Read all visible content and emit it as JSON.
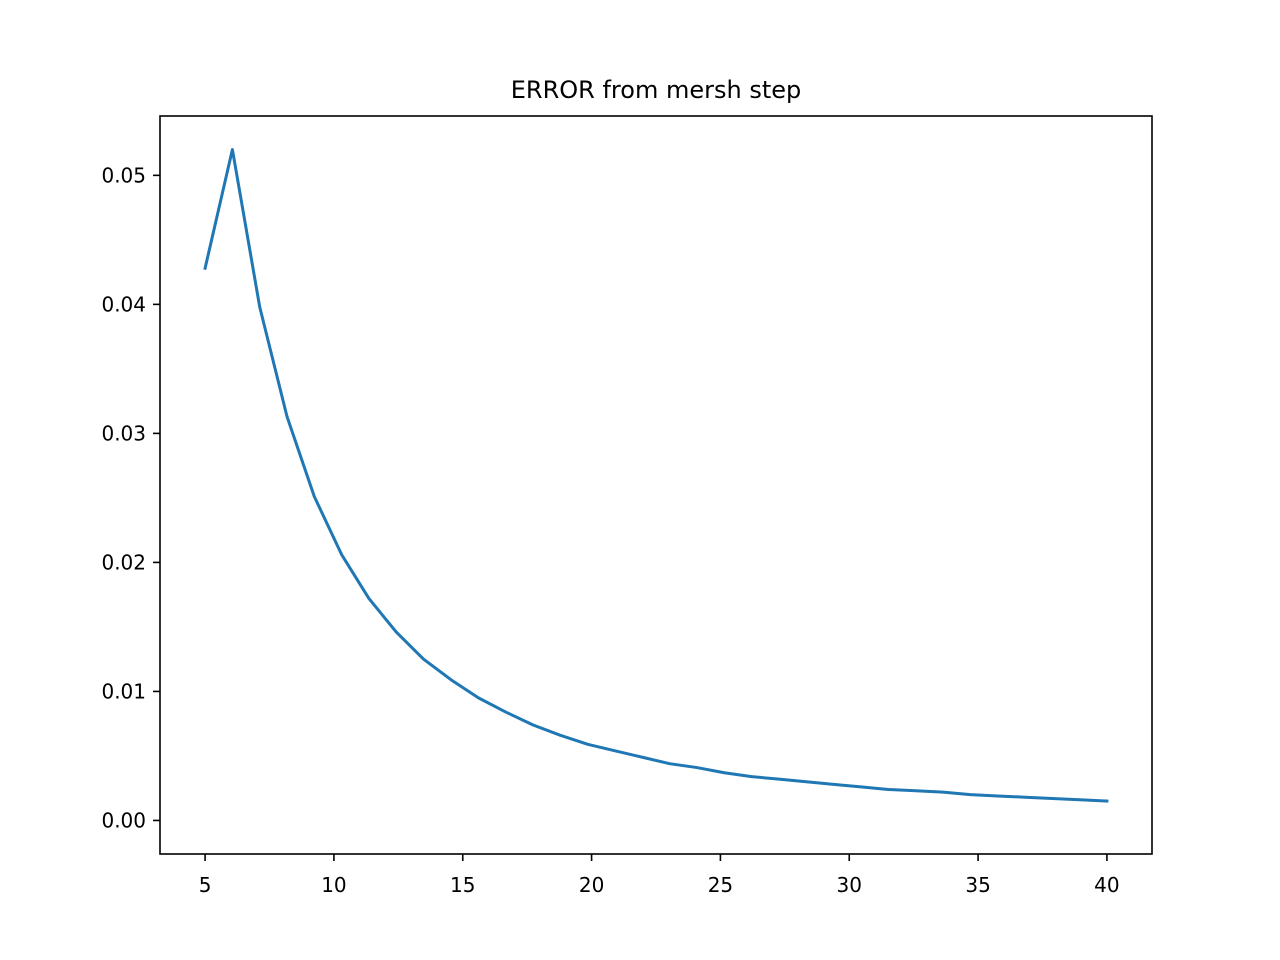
{
  "chart_data": {
    "type": "line",
    "title": "ERROR from mersh step",
    "xlabel": "",
    "ylabel": "",
    "xlim": [
      3.25,
      41.75
    ],
    "ylim": [
      -0.0026,
      0.0546
    ],
    "xticks": [
      5,
      10,
      15,
      20,
      25,
      30,
      35,
      40
    ],
    "xtick_labels": [
      "5",
      "10",
      "15",
      "20",
      "25",
      "30",
      "35",
      "40"
    ],
    "yticks": [
      0.0,
      0.01,
      0.02,
      0.03,
      0.04,
      0.05
    ],
    "ytick_labels": [
      "0.00",
      "0.01",
      "0.02",
      "0.03",
      "0.04",
      "0.05"
    ],
    "grid": false,
    "series": [
      {
        "color": "#1f77b4",
        "x": [
          5.0,
          6.06,
          7.12,
          8.18,
          9.24,
          10.3,
          11.36,
          12.42,
          13.48,
          14.55,
          15.61,
          16.67,
          17.73,
          18.79,
          19.85,
          20.91,
          21.97,
          23.03,
          24.09,
          25.15,
          26.21,
          27.27,
          28.33,
          29.39,
          30.45,
          31.52,
          32.58,
          33.64,
          34.7,
          35.76,
          36.82,
          37.88,
          38.94,
          40.0
        ],
        "y": [
          0.0428,
          0.052,
          0.0398,
          0.0313,
          0.0251,
          0.0206,
          0.0172,
          0.0146,
          0.0125,
          0.0109,
          0.0095,
          0.0084,
          0.0074,
          0.0066,
          0.0059,
          0.0054,
          0.0049,
          0.0044,
          0.0041,
          0.0037,
          0.0034,
          0.0032,
          0.003,
          0.0028,
          0.0026,
          0.0024,
          0.0023,
          0.0022,
          0.002,
          0.0019,
          0.0018,
          0.0017,
          0.0016,
          0.0015
        ]
      }
    ]
  }
}
